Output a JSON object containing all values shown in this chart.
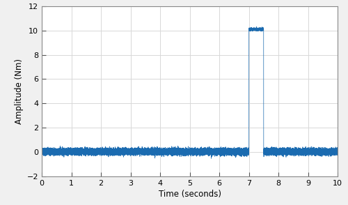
{
  "title": "",
  "xlabel": "Time (seconds)",
  "ylabel": "Amplitude (Nm)",
  "xlim": [
    0,
    10
  ],
  "ylim": [
    -2,
    12
  ],
  "xticks": [
    0,
    1,
    2,
    3,
    4,
    5,
    6,
    7,
    8,
    9,
    10
  ],
  "yticks": [
    -2,
    0,
    2,
    4,
    6,
    8,
    10,
    12
  ],
  "line_color": "#1b6bb0",
  "background_color": "#f0f0f0",
  "plot_bg_color": "#ffffff",
  "grid_color": "#d8d8d8",
  "noise_amplitude": 0.12,
  "noise_base": 0.03,
  "pulse_start": 7.0,
  "pulse_end": 7.5,
  "pulse_height": 10.1,
  "pulse_noise": 0.05,
  "sample_rate": 5000,
  "total_time": 10.0,
  "line_width": 0.5,
  "figsize": [
    5.0,
    2.94
  ],
  "dpi": 100
}
